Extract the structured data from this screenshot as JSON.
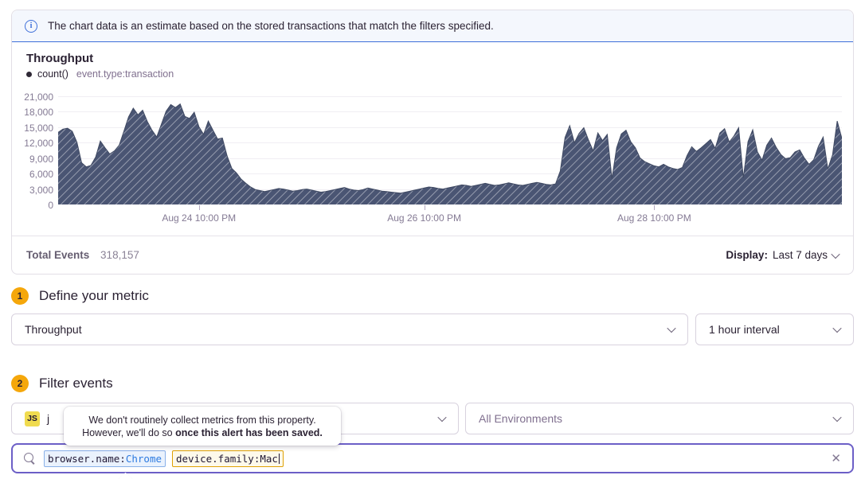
{
  "banner": {
    "text": "The chart data is an estimate based on the stored transactions that match the filters specified."
  },
  "chart_panel": {
    "title": "Throughput",
    "legend": {
      "series_label": "count()",
      "query_label": "event.type:transaction"
    },
    "footer": {
      "total_events_label": "Total Events",
      "total_events_value": "318,157",
      "display_label": "Display:",
      "display_value": "Last 7 days"
    }
  },
  "chart_data": {
    "type": "area",
    "title": "Throughput",
    "ylabel": "",
    "xlabel": "",
    "ylim": [
      0,
      21000
    ],
    "yticks": [
      0,
      3000,
      6000,
      9000,
      12000,
      15000,
      18000,
      21000
    ],
    "xticks": [
      {
        "index": 30,
        "label": "Aug 24 10:00 PM"
      },
      {
        "index": 78,
        "label": "Aug 26 10:00 PM"
      },
      {
        "index": 127,
        "label": "Aug 28 10:00 PM"
      }
    ],
    "x_range": "last 7 days, 1 hour interval, 168 points",
    "grid": "horizontal",
    "legend_position": "top-left",
    "fill_color": "#4a5573",
    "hatch": "diagonal",
    "series": [
      {
        "name": "count()",
        "query": "event.type:transaction",
        "values": [
          14000,
          14600,
          14800,
          14200,
          12100,
          8100,
          7300,
          7600,
          9200,
          12300,
          11000,
          9800,
          10400,
          11500,
          14200,
          17000,
          18700,
          17400,
          18300,
          16100,
          14400,
          13100,
          15600,
          18100,
          19400,
          18800,
          19500,
          17100,
          16700,
          17900,
          15100,
          13600,
          16200,
          14400,
          12700,
          12900,
          9400,
          7000,
          6100,
          4900,
          4100,
          3400,
          2900,
          2700,
          2500,
          2700,
          2900,
          3100,
          3000,
          2800,
          2600,
          2700,
          2900,
          3000,
          2800,
          2600,
          2400,
          2500,
          2700,
          2900,
          3100,
          3300,
          3000,
          2800,
          2700,
          2900,
          3200,
          3000,
          2800,
          2600,
          2500,
          2400,
          2300,
          2200,
          2400,
          2600,
          2800,
          3000,
          3200,
          3400,
          3300,
          3100,
          3000,
          3200,
          3400,
          3600,
          3800,
          3700,
          3500,
          3700,
          3900,
          4100,
          3900,
          3700,
          3800,
          4000,
          4200,
          4000,
          3800,
          3700,
          3900,
          4100,
          4300,
          4100,
          3900,
          3800,
          4000,
          6500,
          13000,
          15300,
          12000,
          13800,
          14900,
          12500,
          10400,
          13900,
          12400,
          13600,
          5000,
          11000,
          13700,
          14400,
          12200,
          11000,
          9000,
          8300,
          7900,
          7500,
          7300,
          7800,
          7300,
          7000,
          6800,
          7200,
          9500,
          11200,
          10300,
          11000,
          11800,
          12600,
          10900,
          13900,
          14700,
          12100,
          13300,
          14900,
          5200,
          12200,
          14500,
          10200,
          8600,
          11500,
          12900,
          11100,
          9700,
          8900,
          9100,
          10200,
          10600,
          9000,
          7800,
          8700,
          11300,
          13100,
          6900,
          9600,
          16200,
          12800
        ]
      }
    ]
  },
  "sections": {
    "metric": {
      "step": "1",
      "title": "Define your metric",
      "aggregate_value": "Throughput",
      "interval_value": "1 hour interval"
    },
    "filter": {
      "step": "2",
      "title": "Filter events",
      "project_badge": "JS",
      "project_visible_text": "j",
      "environment_value": "All Environments"
    }
  },
  "tooltip": {
    "line1": "We don't routinely collect metrics from this property.",
    "line2_normal": "However, we'll do so ",
    "line2_bold": "once this alert has been saved."
  },
  "search": {
    "tokens": [
      {
        "key": "browser.name:",
        "value": "Chrome"
      },
      {
        "key": "device.family:",
        "value": "Mac"
      }
    ],
    "clear_icon": "✕"
  },
  "colors": {
    "accent_purple": "#6c5fc7",
    "banner_blue": "#3e6fd9",
    "step_badge_yellow": "#f5a70b",
    "chart_fill": "#4a5573",
    "token_blue_border": "#89b0e8",
    "token_amber_border": "#dfa104",
    "js_badge_yellow": "#f0db4f"
  }
}
